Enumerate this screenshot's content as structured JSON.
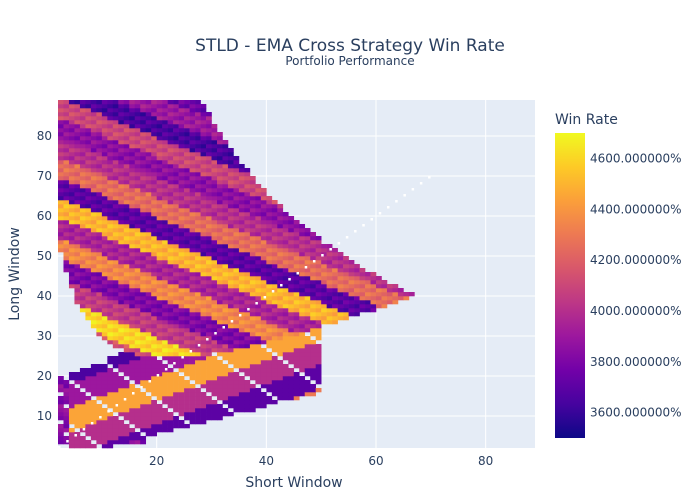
{
  "chart_data": {
    "type": "heatmap",
    "title": "STLD - EMA Cross Strategy Win Rate",
    "subtitle": "Portfolio Performance",
    "xlabel": "Short Window",
    "ylabel": "Long Window",
    "xlim": [
      2,
      89
    ],
    "ylim": [
      2,
      89
    ],
    "x_ticks": [
      20,
      40,
      60,
      80
    ],
    "y_ticks": [
      10,
      20,
      30,
      40,
      50,
      60,
      70,
      80
    ],
    "grid": true,
    "colorbar": {
      "title": "Win Rate",
      "range": [
        3500,
        4700
      ],
      "ticks": [
        {
          "value": 3600,
          "label": "3600.000000%"
        },
        {
          "value": 3800,
          "label": "3800.000000%"
        },
        {
          "value": 4000,
          "label": "4000.000000%"
        },
        {
          "value": 4200,
          "label": "4200.000000%"
        },
        {
          "value": 4400,
          "label": "4400.000000%"
        },
        {
          "value": 4600,
          "label": "4600.000000%"
        }
      ]
    },
    "colorscale": [
      "#0d0887",
      "#46039f",
      "#7201a8",
      "#9c179e",
      "#bd3786",
      "#d8576b",
      "#ed7953",
      "#fb9f3a",
      "#fdca26",
      "#f0f921"
    ],
    "band_values": [
      3750,
      4000,
      4300,
      3900,
      4450,
      3850,
      4150,
      4600,
      4050,
      3800,
      4350,
      3950,
      4500,
      3700,
      4250,
      4000,
      3850,
      4100,
      3650,
      3900
    ]
  },
  "colors": {
    "plot_background": "#e5ecf6",
    "grid": "#ffffff",
    "text": "#2a3f5f"
  }
}
